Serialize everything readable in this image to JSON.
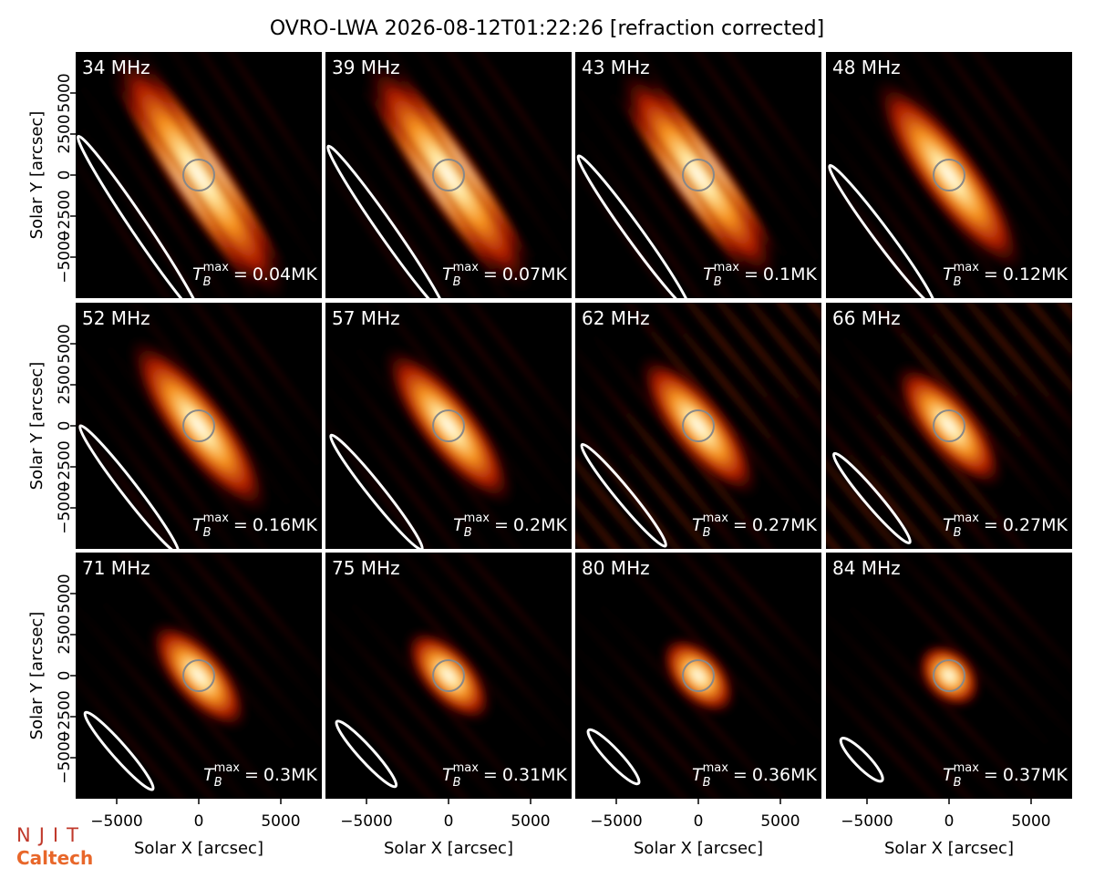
{
  "chart_data": {
    "type": "image-grid",
    "title": "OVRO-LWA 2026-08-12T01:22:26 [refraction corrected]",
    "xlabel": "Solar X [arcsec]",
    "ylabel": "Solar Y [arcsec]",
    "xlim": [
      -7500,
      7500
    ],
    "ylim": [
      -7500,
      7500
    ],
    "xticks": [
      {
        "value": -5000,
        "label": "−5000"
      },
      0,
      5000
    ],
    "yticks": [
      {
        "value": -5000,
        "label": "−5000"
      },
      {
        "value": -2500,
        "label": "−2500"
      },
      0,
      2500,
      5000
    ],
    "tb_symbol": "T",
    "tb_sub": "B",
    "tb_sup": "max",
    "tb_eq": "=",
    "panels": [
      {
        "freq": "34 MHz",
        "tb": "0.04MK"
      },
      {
        "freq": "39 MHz",
        "tb": "0.07MK"
      },
      {
        "freq": "43 MHz",
        "tb": "0.1MK"
      },
      {
        "freq": "48 MHz",
        "tb": "0.12MK"
      },
      {
        "freq": "52 MHz",
        "tb": "0.16MK"
      },
      {
        "freq": "57 MHz",
        "tb": "0.2MK"
      },
      {
        "freq": "62 MHz",
        "tb": "0.27MK"
      },
      {
        "freq": "66 MHz",
        "tb": "0.27MK"
      },
      {
        "freq": "71 MHz",
        "tb": "0.3MK"
      },
      {
        "freq": "75 MHz",
        "tb": "0.31MK"
      },
      {
        "freq": "80 MHz",
        "tb": "0.36MK"
      },
      {
        "freq": "84 MHz",
        "tb": "0.37MK"
      }
    ],
    "logos": {
      "top": "NJIT",
      "bottom": "Caltech"
    }
  }
}
